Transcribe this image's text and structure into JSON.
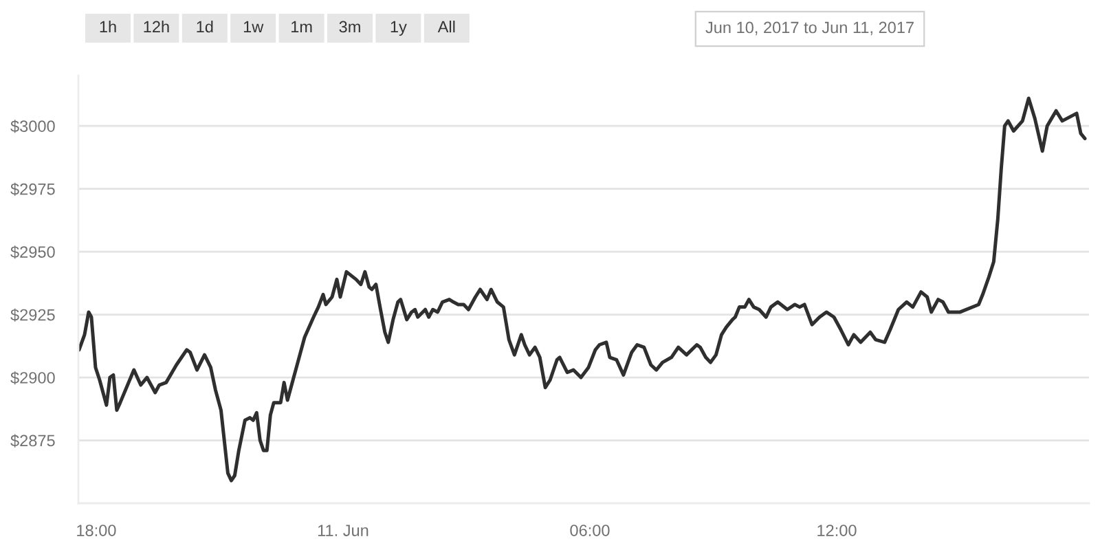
{
  "chart_data": {
    "type": "line",
    "subtitle": "Jun 10, 2017 to Jun 11, 2017",
    "annotations": [
      "1h",
      "12h",
      "1d",
      "1w",
      "1m",
      "3m",
      "1y",
      "All"
    ],
    "x": [
      "2017-06-10T17:35",
      "2017-06-10T17:43",
      "2017-06-10T17:49",
      "2017-06-10T17:53",
      "2017-06-10T17:59",
      "2017-06-10T18:05",
      "2017-06-10T18:15",
      "2017-06-10T18:20",
      "2017-06-10T18:25",
      "2017-06-10T18:30",
      "2017-06-10T18:35",
      "2017-06-10T18:55",
      "2017-06-10T19:05",
      "2017-06-10T19:14",
      "2017-06-10T19:26",
      "2017-06-10T19:32",
      "2017-06-10T19:42",
      "2017-06-10T19:57",
      "2017-06-10T20:12",
      "2017-06-10T20:17",
      "2017-06-10T20:27",
      "2017-06-10T20:38",
      "2017-06-10T20:47",
      "2017-06-10T20:54",
      "2017-06-10T21:02",
      "2017-06-10T21:12",
      "2017-06-10T21:17",
      "2017-06-10T21:22",
      "2017-06-10T21:28",
      "2017-06-10T21:37",
      "2017-06-10T21:44",
      "2017-06-10T21:49",
      "2017-06-10T21:54",
      "2017-06-10T21:59",
      "2017-06-10T22:04",
      "2017-06-10T22:09",
      "2017-06-10T22:14",
      "2017-06-10T22:19",
      "2017-06-10T22:29",
      "2017-06-10T22:34",
      "2017-06-10T22:39",
      "2017-06-10T22:54",
      "2017-06-10T23:04",
      "2017-06-10T23:17",
      "2017-06-10T23:24",
      "2017-06-10T23:31",
      "2017-06-10T23:35",
      "2017-06-10T23:44",
      "2017-06-10T23:51",
      "2017-06-10T23:56",
      "2017-06-11T00:05",
      "2017-06-11T00:19",
      "2017-06-11T00:26",
      "2017-06-11T00:32",
      "2017-06-11T00:38",
      "2017-06-11T00:42",
      "2017-06-11T00:48",
      "2017-06-11T00:54",
      "2017-06-11T01:01",
      "2017-06-11T01:06",
      "2017-06-11T01:13",
      "2017-06-11T01:20",
      "2017-06-11T01:24",
      "2017-06-11T01:33",
      "2017-06-11T01:40",
      "2017-06-11T01:45",
      "2017-06-11T01:49",
      "2017-06-11T02:00",
      "2017-06-11T02:05",
      "2017-06-11T02:11",
      "2017-06-11T02:18",
      "2017-06-11T02:25",
      "2017-06-11T02:35",
      "2017-06-11T02:41",
      "2017-06-11T02:48",
      "2017-06-11T02:56",
      "2017-06-11T03:03",
      "2017-06-11T03:13",
      "2017-06-11T03:20",
      "2017-06-11T03:30",
      "2017-06-11T03:36",
      "2017-06-11T03:45",
      "2017-06-11T03:54",
      "2017-06-11T04:02",
      "2017-06-11T04:10",
      "2017-06-11T04:15",
      "2017-06-11T04:20",
      "2017-06-11T04:25",
      "2017-06-11T04:32",
      "2017-06-11T04:40",
      "2017-06-11T04:47",
      "2017-06-11T04:55",
      "2017-06-11T05:02",
      "2017-06-11T05:12",
      "2017-06-11T05:16",
      "2017-06-11T05:27",
      "2017-06-11T05:36",
      "2017-06-11T05:47",
      "2017-06-11T05:58",
      "2017-06-11T06:08",
      "2017-06-11T06:14",
      "2017-06-11T06:24",
      "2017-06-11T06:29",
      "2017-06-11T06:39",
      "2017-06-11T06:49",
      "2017-06-11T07:01",
      "2017-06-11T07:09",
      "2017-06-11T07:19",
      "2017-06-11T07:29",
      "2017-06-11T07:37",
      "2017-06-11T07:46",
      "2017-06-11T07:59",
      "2017-06-11T08:09",
      "2017-06-11T08:21",
      "2017-06-11T08:36",
      "2017-06-11T08:41",
      "2017-06-11T08:49",
      "2017-06-11T08:56",
      "2017-06-11T09:04",
      "2017-06-11T09:12",
      "2017-06-11T09:19",
      "2017-06-11T09:28",
      "2017-06-11T09:32",
      "2017-06-11T09:38",
      "2017-06-11T09:46",
      "2017-06-11T09:52",
      "2017-06-11T09:59",
      "2017-06-11T10:07",
      "2017-06-11T10:17",
      "2017-06-11T10:24",
      "2017-06-11T10:34",
      "2017-06-11T10:48",
      "2017-06-11T10:59",
      "2017-06-11T11:06",
      "2017-06-11T11:13",
      "2017-06-11T11:24",
      "2017-06-11T11:35",
      "2017-06-11T11:45",
      "2017-06-11T11:56",
      "2017-06-11T12:06",
      "2017-06-11T12:17",
      "2017-06-11T12:25",
      "2017-06-11T12:35",
      "2017-06-11T12:49",
      "2017-06-11T12:57",
      "2017-06-11T13:10",
      "2017-06-11T13:18",
      "2017-06-11T13:30",
      "2017-06-11T13:42",
      "2017-06-11T13:51",
      "2017-06-11T14:03",
      "2017-06-11T14:12",
      "2017-06-11T14:18",
      "2017-06-11T14:28",
      "2017-06-11T14:35",
      "2017-06-11T14:43",
      "2017-06-11T15:00",
      "2017-06-11T15:27",
      "2017-06-11T15:33",
      "2017-06-11T15:42",
      "2017-06-11T15:49",
      "2017-06-11T15:55",
      "2017-06-11T16:00",
      "2017-06-11T16:05",
      "2017-06-11T16:10",
      "2017-06-11T16:18",
      "2017-06-11T16:31",
      "2017-06-11T16:40",
      "2017-06-11T16:49",
      "2017-06-11T17:00",
      "2017-06-11T17:07",
      "2017-06-11T17:20",
      "2017-06-11T17:29",
      "2017-06-11T17:50",
      "2017-06-11T17:56",
      "2017-06-11T18:02"
    ],
    "series": [
      {
        "color": "#2f2f2f",
        "values": [
          2911,
          2917,
          2926,
          2924,
          2904,
          2899,
          2889,
          2900,
          2901,
          2887,
          2890,
          2903,
          2897,
          2900,
          2894,
          2897,
          2898,
          2905,
          2911,
          2910,
          2903,
          2909,
          2904,
          2895,
          2887,
          2862,
          2859,
          2861,
          2871,
          2883,
          2884,
          2883,
          2886,
          2875,
          2871,
          2871,
          2885,
          2890,
          2890,
          2898,
          2891,
          2906,
          2916,
          2924,
          2928,
          2933,
          2929,
          2932,
          2939,
          2932,
          2942,
          2939,
          2937,
          2942,
          2936,
          2935,
          2937,
          2928,
          2918,
          2914,
          2923,
          2930,
          2931,
          2923,
          2926,
          2927,
          2924,
          2927,
          2924,
          2927,
          2926,
          2930,
          2931,
          2930,
          2929,
          2929,
          2927,
          2932,
          2935,
          2931,
          2935,
          2930,
          2928,
          2915,
          2909,
          2913,
          2917,
          2913,
          2909,
          2912,
          2908,
          2896,
          2899,
          2907,
          2908,
          2902,
          2903,
          2900,
          2904,
          2911,
          2913,
          2914,
          2908,
          2907,
          2901,
          2910,
          2913,
          2912,
          2905,
          2903,
          2906,
          2908,
          2912,
          2909,
          2913,
          2912,
          2908,
          2906,
          2909,
          2917,
          2920,
          2923,
          2924,
          2928,
          2928,
          2931,
          2928,
          2927,
          2924,
          2928,
          2930,
          2927,
          2929,
          2928,
          2929,
          2921,
          2924,
          2926,
          2924,
          2919,
          2913,
          2917,
          2914,
          2918,
          2915,
          2914,
          2919,
          2927,
          2930,
          2928,
          2934,
          2932,
          2926,
          2931,
          2930,
          2926,
          2926,
          2929,
          2933,
          2940,
          2946,
          2963,
          2983,
          3000,
          3002,
          2998,
          3002,
          3011,
          3003,
          2990,
          3000,
          3006,
          3002,
          3005,
          2997,
          2995
        ]
      }
    ],
    "xlim": [
      "2017-06-10T17:34",
      "2017-06-11T18:08"
    ],
    "xticks": [
      {
        "value": "2017-06-10T18:00",
        "label": "18:00"
      },
      {
        "value": "2017-06-11T00:00",
        "label": "11. Jun"
      },
      {
        "value": "2017-06-11T06:00",
        "label": "06:00"
      },
      {
        "value": "2017-06-11T12:00",
        "label": "12:00"
      }
    ],
    "ylim": [
      2850,
      3020
    ],
    "yticks": [
      {
        "value": 2875,
        "label": "$2875"
      },
      {
        "value": 2900,
        "label": "$2900"
      },
      {
        "value": 2925,
        "label": "$2925"
      },
      {
        "value": 2950,
        "label": "$2950"
      },
      {
        "value": 2975,
        "label": "$2975"
      },
      {
        "value": 3000,
        "label": "$3000"
      }
    ],
    "grid": "y"
  }
}
